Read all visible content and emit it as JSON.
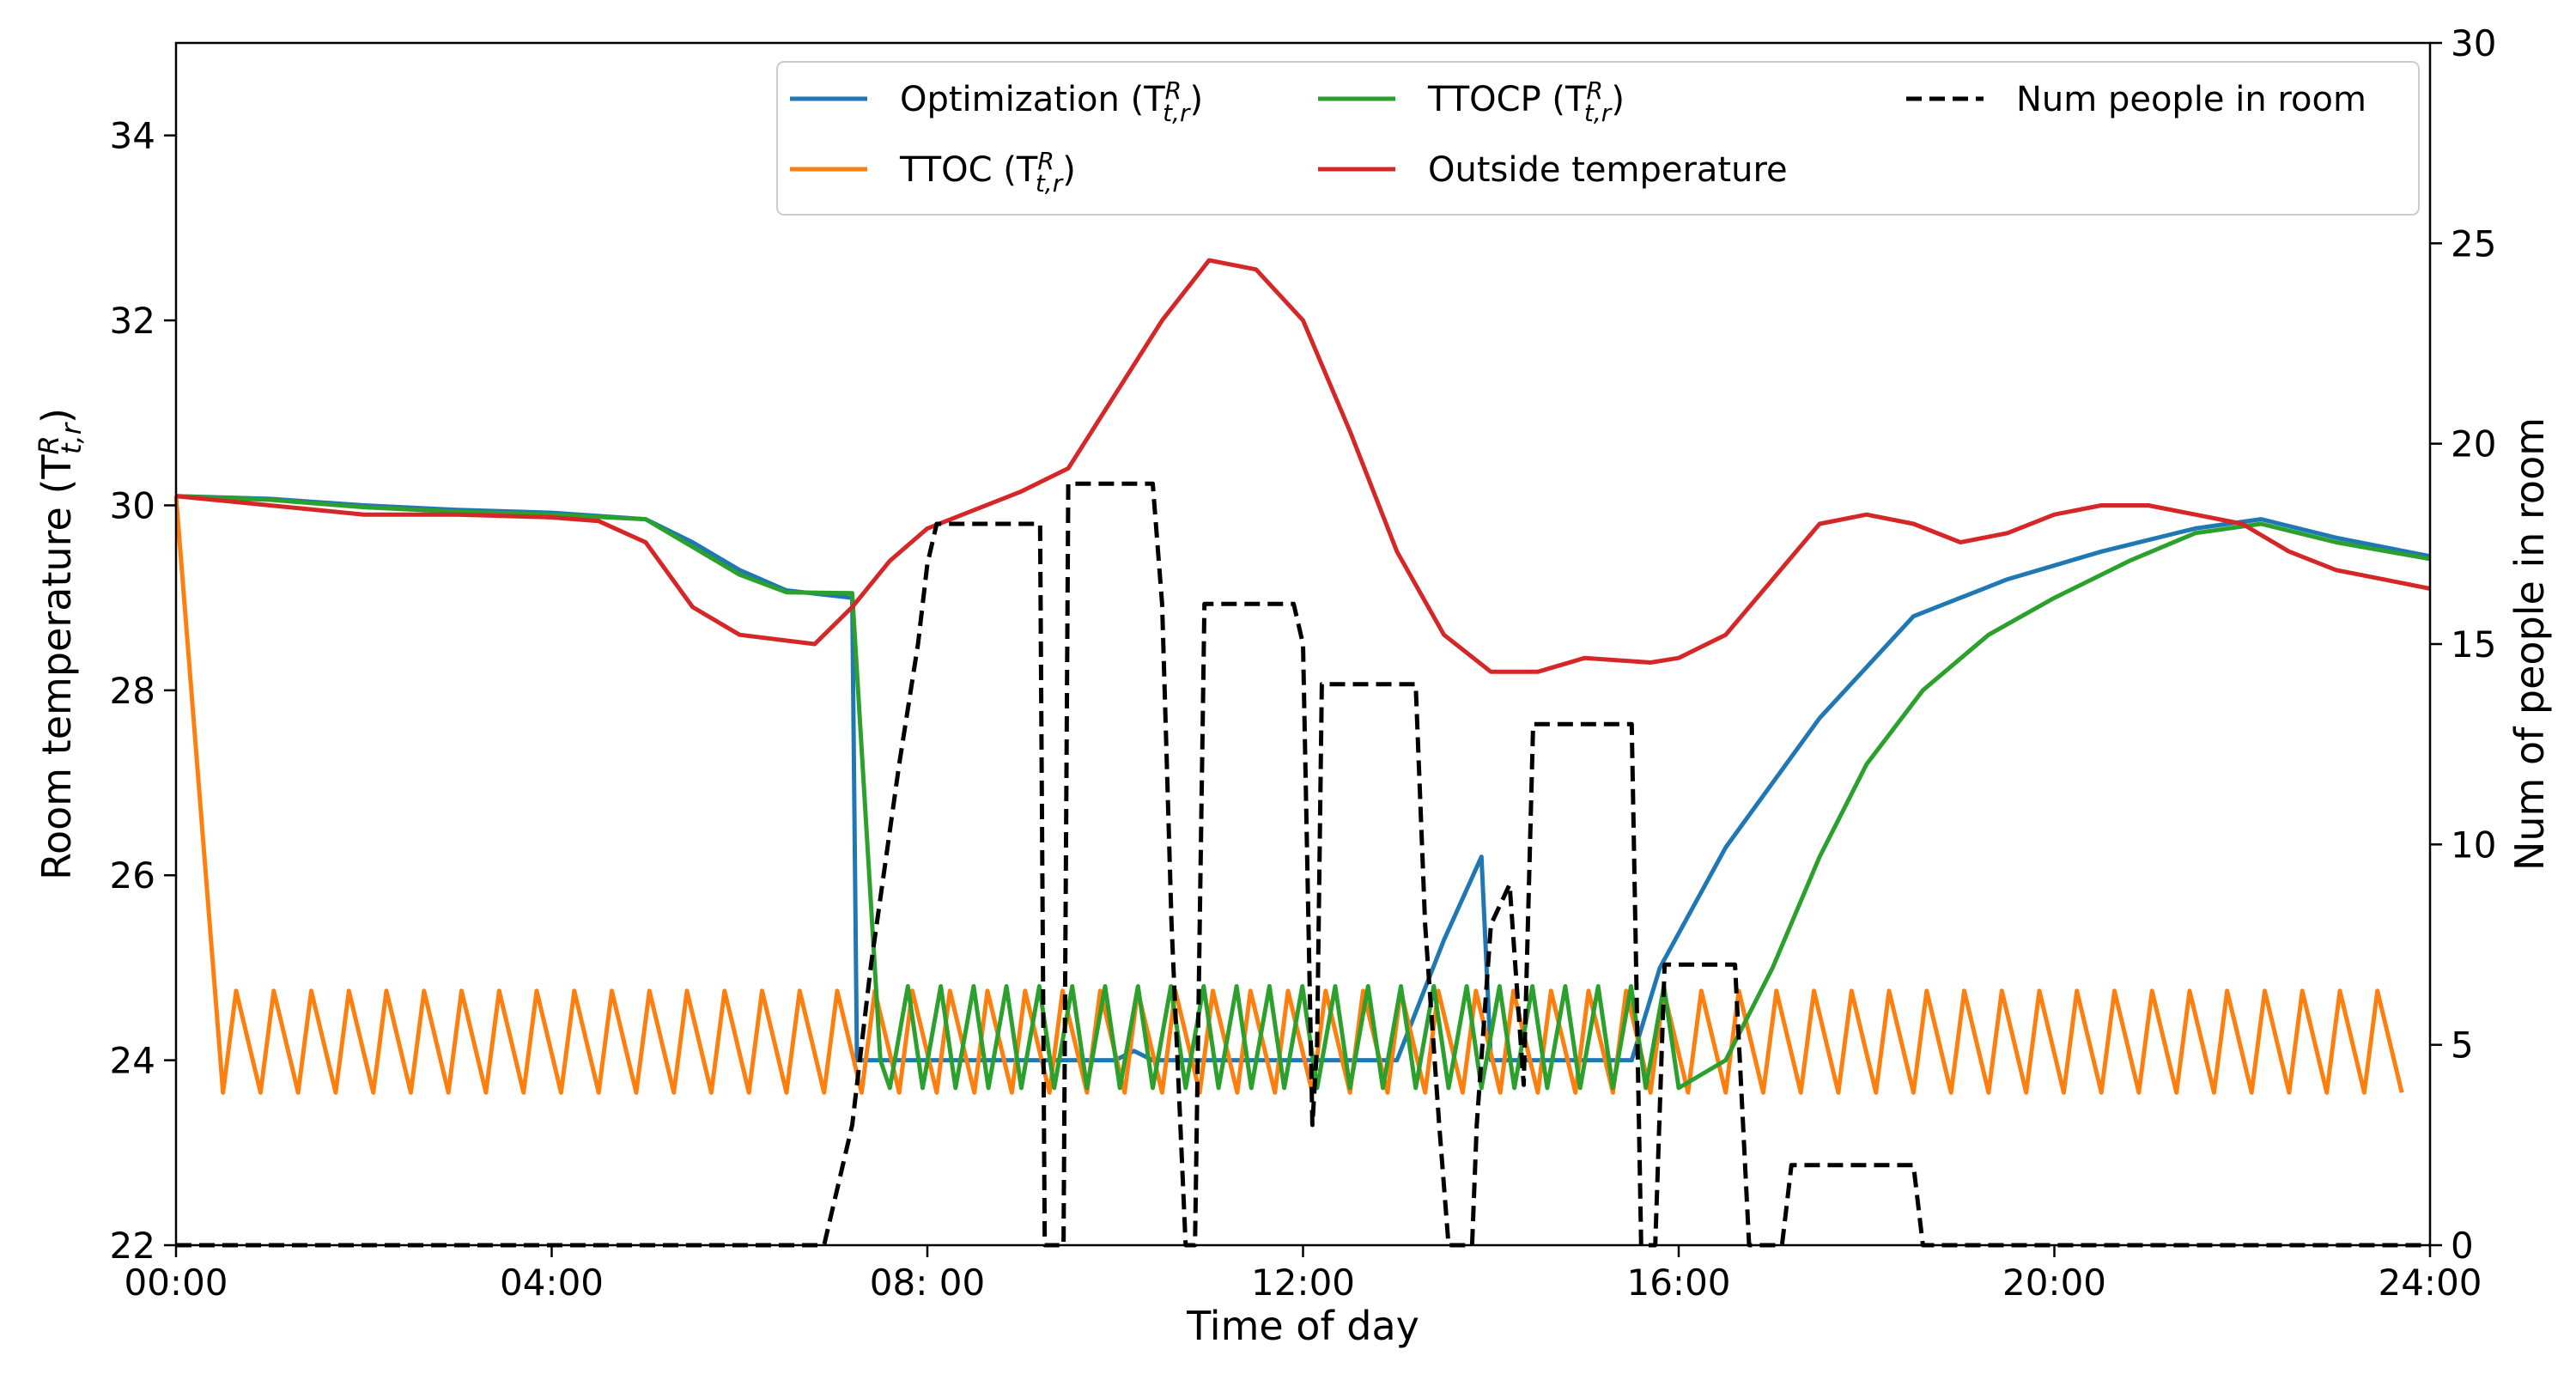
{
  "chart_data": {
    "type": "line",
    "xlabel": "Time of day",
    "ylabel_left": "Room temperature (T^R_t,r)",
    "ylabel_right": "Num of people in room",
    "xlim": [
      0,
      24
    ],
    "ylim_left": [
      22,
      35
    ],
    "ylim_right": [
      0,
      30
    ],
    "x_ticks": [
      0,
      4,
      8,
      12,
      16,
      20,
      24
    ],
    "x_tick_labels": [
      "00:00",
      "04:00",
      "08: 00",
      "12:00",
      "16:00",
      "20:00",
      "24:00"
    ],
    "y_ticks_left": [
      22,
      24,
      26,
      28,
      30,
      32,
      34
    ],
    "y_ticks_right": [
      0,
      5,
      10,
      15,
      20,
      25,
      30
    ],
    "grid": false,
    "legend_placement": "top-right",
    "series": [
      {
        "name": "Optimization (T^R_t,r)",
        "axis": "left",
        "color": "#1f77b4",
        "dash": "solid",
        "points": [
          [
            0,
            30.1
          ],
          [
            1,
            30.07
          ],
          [
            2,
            30.0
          ],
          [
            3,
            29.95
          ],
          [
            4,
            29.92
          ],
          [
            5,
            29.85
          ],
          [
            5.5,
            29.6
          ],
          [
            6,
            29.3
          ],
          [
            6.5,
            29.08
          ],
          [
            7.2,
            29.0
          ],
          [
            7.25,
            24.0
          ],
          [
            10,
            24.0
          ],
          [
            10.2,
            24.1
          ],
          [
            10.4,
            24.0
          ],
          [
            11,
            24.0
          ],
          [
            13,
            24.0
          ],
          [
            13.5,
            25.3
          ],
          [
            13.9,
            26.2
          ],
          [
            14.0,
            24.0
          ],
          [
            15.5,
            24.0
          ],
          [
            15.8,
            25.0
          ],
          [
            16.5,
            26.3
          ],
          [
            17.5,
            27.7
          ],
          [
            18.5,
            28.8
          ],
          [
            19.5,
            29.2
          ],
          [
            20.5,
            29.5
          ],
          [
            21.5,
            29.75
          ],
          [
            22.2,
            29.85
          ],
          [
            23,
            29.65
          ],
          [
            24,
            29.45
          ]
        ]
      },
      {
        "name": "TTOC (T^R_t,r)",
        "axis": "left",
        "color": "#ff7f0e",
        "dash": "solid",
        "sawtooth": {
          "start": [
            0,
            30.1
          ],
          "first_min": [
            0.5,
            23.65
          ],
          "period_h": 0.4,
          "low": 23.65,
          "high": 24.75
        }
      },
      {
        "name": "TTOCP (T^R_t,r)",
        "axis": "left",
        "color": "#2ca02c",
        "dash": "solid",
        "points": [
          [
            0,
            30.1
          ],
          [
            1,
            30.06
          ],
          [
            2,
            29.98
          ],
          [
            3,
            29.93
          ],
          [
            4,
            29.9
          ],
          [
            5,
            29.85
          ],
          [
            5.5,
            29.55
          ],
          [
            6,
            29.25
          ],
          [
            6.5,
            29.06
          ],
          [
            7.2,
            29.05
          ],
          [
            7.5,
            24.0
          ],
          [
            7.6,
            23.7
          ],
          [
            15.9,
            23.9
          ],
          [
            16.5,
            24.0
          ],
          [
            17.0,
            25.0
          ],
          [
            17.5,
            26.2
          ],
          [
            18.0,
            27.2
          ],
          [
            18.6,
            28.0
          ],
          [
            19.3,
            28.6
          ],
          [
            20.0,
            29.0
          ],
          [
            20.8,
            29.4
          ],
          [
            21.5,
            29.7
          ],
          [
            22.2,
            29.8
          ],
          [
            23,
            29.6
          ],
          [
            24,
            29.42
          ]
        ],
        "oscillation": {
          "from": 7.6,
          "to": 16.0,
          "period_h": 0.35,
          "low": 23.7,
          "high": 24.8
        }
      },
      {
        "name": "Outside temperature",
        "axis": "left",
        "color": "#d62728",
        "dash": "solid",
        "points": [
          [
            0,
            30.1
          ],
          [
            1,
            30.0
          ],
          [
            2,
            29.9
          ],
          [
            3,
            29.9
          ],
          [
            4,
            29.87
          ],
          [
            4.5,
            29.83
          ],
          [
            5,
            29.6
          ],
          [
            5.5,
            28.9
          ],
          [
            6,
            28.6
          ],
          [
            6.8,
            28.5
          ],
          [
            7.2,
            28.9
          ],
          [
            7.6,
            29.4
          ],
          [
            8,
            29.75
          ],
          [
            8.5,
            29.95
          ],
          [
            9,
            30.15
          ],
          [
            9.5,
            30.4
          ],
          [
            10,
            31.2
          ],
          [
            10.5,
            32.0
          ],
          [
            11,
            32.65
          ],
          [
            11.5,
            32.55
          ],
          [
            12,
            32.0
          ],
          [
            12.5,
            30.8
          ],
          [
            13,
            29.5
          ],
          [
            13.5,
            28.6
          ],
          [
            14,
            28.2
          ],
          [
            14.5,
            28.2
          ],
          [
            15,
            28.35
          ],
          [
            15.7,
            28.3
          ],
          [
            16,
            28.35
          ],
          [
            16.5,
            28.6
          ],
          [
            17,
            29.2
          ],
          [
            17.5,
            29.8
          ],
          [
            18,
            29.9
          ],
          [
            18.5,
            29.8
          ],
          [
            19,
            29.6
          ],
          [
            19.5,
            29.7
          ],
          [
            20,
            29.9
          ],
          [
            20.5,
            30.0
          ],
          [
            21,
            30.0
          ],
          [
            21.5,
            29.9
          ],
          [
            22,
            29.8
          ],
          [
            22.5,
            29.5
          ],
          [
            23,
            29.3
          ],
          [
            23.5,
            29.2
          ],
          [
            24,
            29.1
          ]
        ]
      },
      {
        "name": "Num people in room",
        "axis": "right",
        "color": "#000000",
        "dash": "dashed",
        "points": [
          [
            0,
            0
          ],
          [
            6.9,
            0
          ],
          [
            7.2,
            3
          ],
          [
            7.4,
            7
          ],
          [
            7.7,
            12
          ],
          [
            7.9,
            15
          ],
          [
            8.0,
            17
          ],
          [
            8.1,
            18
          ],
          [
            9.2,
            18
          ],
          [
            9.25,
            0
          ],
          [
            9.45,
            0
          ],
          [
            9.5,
            19
          ],
          [
            10.4,
            19
          ],
          [
            10.5,
            16
          ],
          [
            10.6,
            8
          ],
          [
            10.75,
            0
          ],
          [
            10.85,
            0
          ],
          [
            10.95,
            16
          ],
          [
            11.9,
            16
          ],
          [
            12.0,
            15
          ],
          [
            12.1,
            3
          ],
          [
            12.15,
            5
          ],
          [
            12.2,
            14
          ],
          [
            13.2,
            14
          ],
          [
            13.3,
            8
          ],
          [
            13.45,
            3
          ],
          [
            13.55,
            0
          ],
          [
            13.8,
            0
          ],
          [
            13.85,
            3
          ],
          [
            14.0,
            8
          ],
          [
            14.2,
            9
          ],
          [
            14.35,
            4
          ],
          [
            14.45,
            13
          ],
          [
            15.5,
            13
          ],
          [
            15.6,
            0
          ],
          [
            15.75,
            0
          ],
          [
            15.85,
            7
          ],
          [
            16.6,
            7
          ],
          [
            16.75,
            0
          ],
          [
            17.1,
            0
          ],
          [
            17.2,
            2
          ],
          [
            18.5,
            2
          ],
          [
            18.6,
            0
          ],
          [
            24,
            0
          ]
        ]
      }
    ]
  }
}
